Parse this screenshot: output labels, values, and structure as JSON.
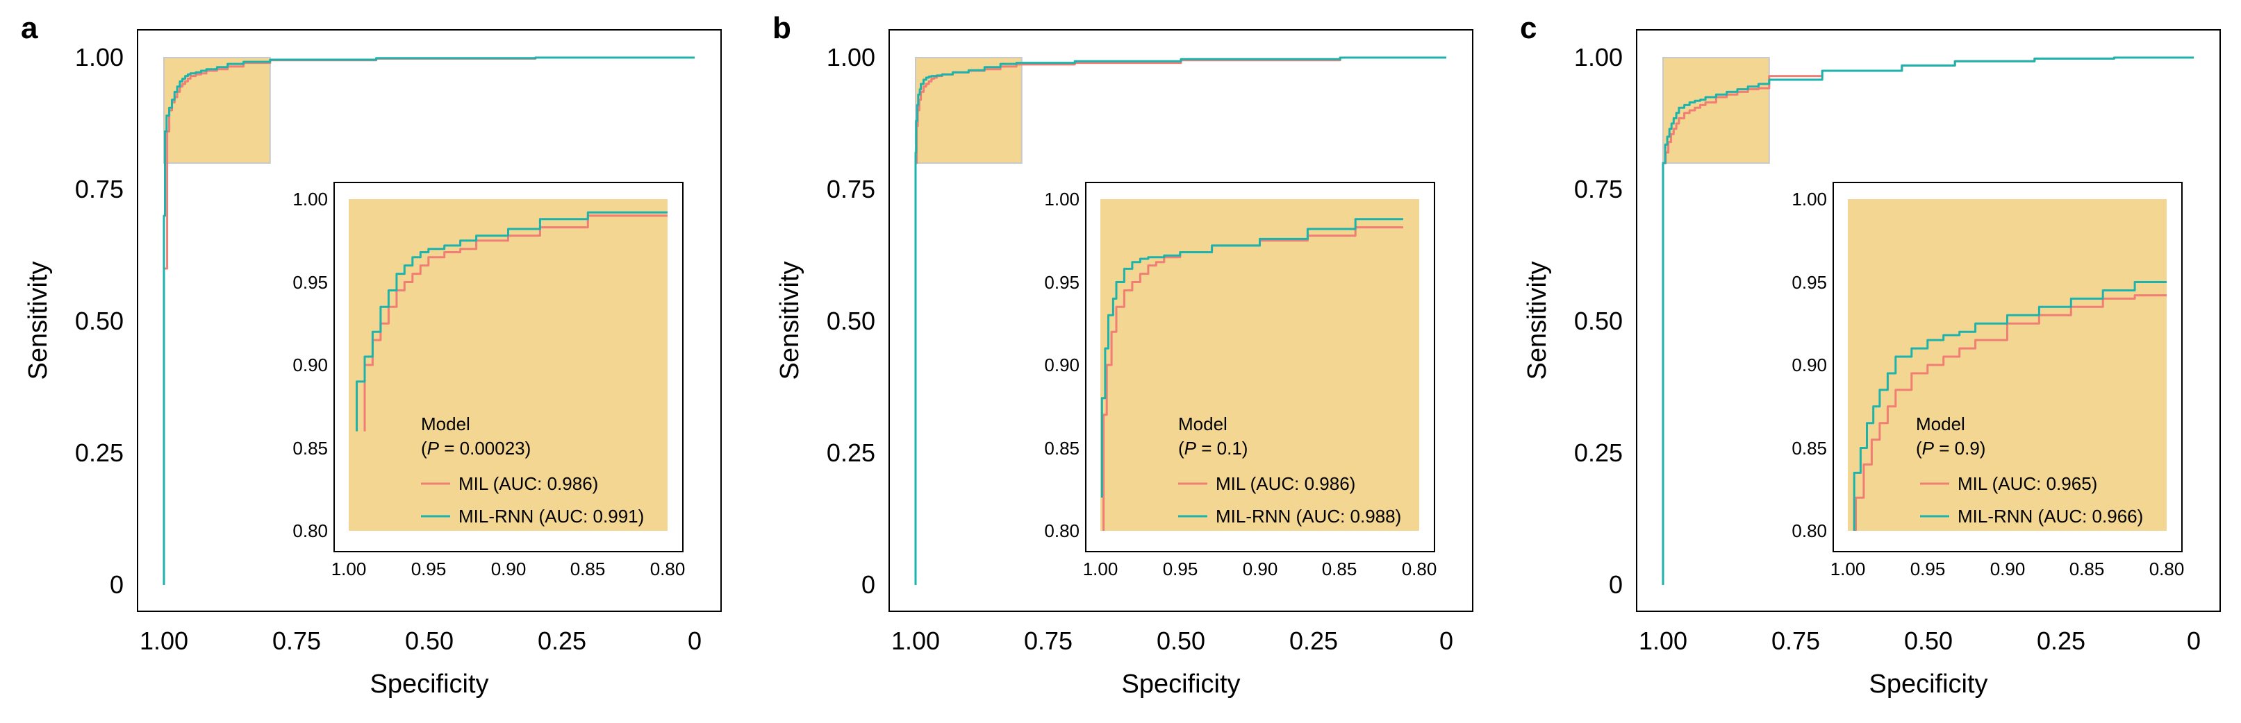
{
  "figure": {
    "colors": {
      "mil": "#F07E74",
      "milrnn": "#1DB3AD",
      "zoom_fill": "#F3D691",
      "zoom_border": "#C9C9C9"
    },
    "panels": [
      {
        "letter": "a",
        "chart_data": {
          "type": "line",
          "title": "",
          "xlabel": "Specificity",
          "ylabel": "Sensitivity",
          "xlim": [
            1.0,
            0.0
          ],
          "ylim": [
            0.0,
            1.0
          ],
          "x_ticks": [
            "1.00",
            "0.75",
            "0.50",
            "0.25",
            "0"
          ],
          "y_ticks": [
            "0",
            "0.25",
            "0.50",
            "0.75",
            "1.00"
          ],
          "zoom_region": {
            "specificity": [
              1.0,
              0.8
            ],
            "sensitivity": [
              0.8,
              1.0
            ]
          },
          "inset": {
            "xlim": [
              1.0,
              0.8
            ],
            "ylim": [
              0.8,
              1.0
            ],
            "x_ticks": [
              "1.00",
              "0.95",
              "0.90",
              "0.85",
              "0.80"
            ],
            "y_ticks": [
              "0.80",
              "0.85",
              "0.90",
              "0.95",
              "1.00"
            ],
            "legend_title": "Model",
            "p_label": "P",
            "p_value": " = 0.00023)",
            "legend_entries": [
              "MIL (AUC: 0.986)",
              "MIL-RNN (AUC: 0.991)"
            ]
          },
          "series": [
            {
              "name": "MIL",
              "x": [
                1.0,
                0.994,
                0.99,
                0.985,
                0.98,
                0.975,
                0.97,
                0.965,
                0.96,
                0.955,
                0.95,
                0.94,
                0.93,
                0.92,
                0.9,
                0.88,
                0.85,
                0.8,
                0.6,
                0.3,
                0.0
              ],
              "y": [
                0.0,
                0.6,
                0.86,
                0.9,
                0.915,
                0.925,
                0.935,
                0.945,
                0.95,
                0.955,
                0.96,
                0.965,
                0.968,
                0.97,
                0.975,
                0.978,
                0.983,
                0.99,
                0.995,
                0.998,
                1.0
              ]
            },
            {
              "name": "MIL-RNN",
              "x": [
                1.0,
                0.998,
                0.995,
                0.99,
                0.985,
                0.98,
                0.975,
                0.97,
                0.965,
                0.96,
                0.955,
                0.95,
                0.94,
                0.93,
                0.92,
                0.9,
                0.88,
                0.85,
                0.8,
                0.6,
                0.3,
                0.0
              ],
              "y": [
                0.0,
                0.7,
                0.86,
                0.89,
                0.905,
                0.92,
                0.935,
                0.945,
                0.955,
                0.96,
                0.965,
                0.968,
                0.97,
                0.972,
                0.975,
                0.978,
                0.982,
                0.988,
                0.992,
                0.996,
                0.999,
                1.0
              ]
            }
          ]
        }
      },
      {
        "letter": "b",
        "chart_data": {
          "type": "line",
          "title": "",
          "xlabel": "Specificity",
          "ylabel": "Sensitivity",
          "xlim": [
            1.0,
            0.0
          ],
          "ylim": [
            0.0,
            1.0
          ],
          "x_ticks": [
            "1.00",
            "0.75",
            "0.50",
            "0.25",
            "0"
          ],
          "y_ticks": [
            "0",
            "0.25",
            "0.50",
            "0.75",
            "1.00"
          ],
          "zoom_region": {
            "specificity": [
              1.0,
              0.8
            ],
            "sensitivity": [
              0.8,
              1.0
            ]
          },
          "inset": {
            "xlim": [
              1.0,
              0.8
            ],
            "ylim": [
              0.8,
              1.0
            ],
            "x_ticks": [
              "1.00",
              "0.95",
              "0.90",
              "0.85",
              "0.80"
            ],
            "y_ticks": [
              "0.80",
              "0.85",
              "0.90",
              "0.95",
              "1.00"
            ],
            "legend_title": "Model",
            "p_label": "P",
            "p_value": " = 0.1)",
            "legend_entries": [
              "MIL (AUC: 0.986)",
              "MIL-RNN (AUC: 0.988)"
            ]
          },
          "series": [
            {
              "name": "MIL",
              "x": [
                1.0,
                0.998,
                0.996,
                0.993,
                0.99,
                0.985,
                0.98,
                0.975,
                0.97,
                0.965,
                0.96,
                0.95,
                0.93,
                0.9,
                0.87,
                0.84,
                0.81,
                0.7,
                0.5,
                0.2,
                0.0
              ],
              "y": [
                0.0,
                0.8,
                0.87,
                0.9,
                0.92,
                0.935,
                0.945,
                0.95,
                0.955,
                0.96,
                0.962,
                0.965,
                0.968,
                0.972,
                0.975,
                0.978,
                0.983,
                0.987,
                0.99,
                0.995,
                1.0
              ]
            },
            {
              "name": "MIL-RNN",
              "x": [
                1.0,
                0.999,
                0.997,
                0.995,
                0.992,
                0.99,
                0.985,
                0.98,
                0.975,
                0.97,
                0.96,
                0.95,
                0.93,
                0.9,
                0.87,
                0.84,
                0.81,
                0.7,
                0.5,
                0.2,
                0.0
              ],
              "y": [
                0.0,
                0.82,
                0.88,
                0.91,
                0.93,
                0.94,
                0.95,
                0.958,
                0.962,
                0.964,
                0.965,
                0.966,
                0.968,
                0.972,
                0.976,
                0.982,
                0.988,
                0.99,
                0.993,
                0.997,
                1.0
              ]
            }
          ]
        }
      },
      {
        "letter": "c",
        "chart_data": {
          "type": "line",
          "title": "",
          "xlabel": "Specificity",
          "ylabel": "Sensitivity",
          "xlim": [
            1.0,
            0.0
          ],
          "ylim": [
            0.0,
            1.0
          ],
          "x_ticks": [
            "1.00",
            "0.75",
            "0.50",
            "0.25",
            "0"
          ],
          "y_ticks": [
            "0",
            "0.25",
            "0.50",
            "0.75",
            "1.00"
          ],
          "zoom_region": {
            "specificity": [
              1.0,
              0.8
            ],
            "sensitivity": [
              0.8,
              1.0
            ]
          },
          "inset": {
            "xlim": [
              1.0,
              0.8
            ],
            "ylim": [
              0.8,
              1.0
            ],
            "x_ticks": [
              "1.00",
              "0.95",
              "0.90",
              "0.85",
              "0.80"
            ],
            "y_ticks": [
              "0.80",
              "0.85",
              "0.90",
              "0.95",
              "1.00"
            ],
            "legend_title": "Model",
            "p_label": "P",
            "p_value": " = 0.9)",
            "legend_entries": [
              "MIL (AUC: 0.965)",
              "MIL-RNN (AUC: 0.966)"
            ]
          },
          "series": [
            {
              "name": "MIL",
              "x": [
                1.0,
                0.995,
                0.99,
                0.985,
                0.98,
                0.975,
                0.97,
                0.96,
                0.95,
                0.94,
                0.93,
                0.92,
                0.9,
                0.88,
                0.86,
                0.84,
                0.82,
                0.8,
                0.7,
                0.55,
                0.45,
                0.3,
                0.15,
                0.0
              ],
              "y": [
                0.0,
                0.8,
                0.82,
                0.84,
                0.855,
                0.865,
                0.875,
                0.885,
                0.895,
                0.9,
                0.905,
                0.91,
                0.915,
                0.925,
                0.93,
                0.935,
                0.94,
                0.942,
                0.965,
                0.975,
                0.985,
                0.993,
                0.998,
                1.0
              ]
            },
            {
              "name": "MIL-RNN",
              "x": [
                1.0,
                0.996,
                0.992,
                0.988,
                0.984,
                0.98,
                0.975,
                0.97,
                0.96,
                0.95,
                0.94,
                0.93,
                0.92,
                0.9,
                0.88,
                0.86,
                0.84,
                0.82,
                0.8,
                0.7,
                0.55,
                0.45,
                0.3,
                0.15,
                0.0
              ],
              "y": [
                0.0,
                0.8,
                0.835,
                0.85,
                0.865,
                0.875,
                0.885,
                0.895,
                0.905,
                0.91,
                0.915,
                0.918,
                0.92,
                0.925,
                0.93,
                0.935,
                0.94,
                0.945,
                0.95,
                0.958,
                0.975,
                0.985,
                0.993,
                0.998,
                1.0
              ]
            }
          ]
        }
      }
    ]
  }
}
